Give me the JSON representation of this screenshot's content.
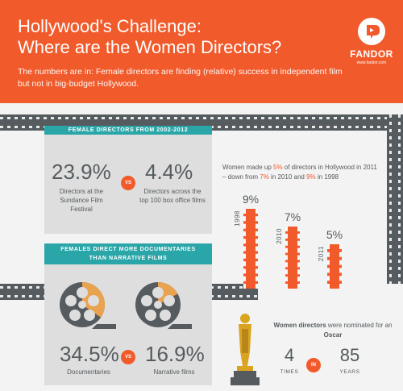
{
  "header": {
    "title_line1": "Hollywood's Challenge:",
    "title_line2": "Where are the Women Directors?",
    "subtitle": "The numbers are in: Female directors are finding (relative) success in independent film but not in big-budget Hollywood.",
    "logo_name": "FANDOR",
    "logo_url": "www.fandor.com"
  },
  "section1": {
    "banner": "FEMALE DIRECTORS FROM 2002-2012",
    "left_value": "23.9%",
    "left_label": "Directors at the Sundance Film Festival",
    "vs": "VS",
    "right_value": "4.4%",
    "right_label": "Directors across the top 100 box office films"
  },
  "chart_data": {
    "type": "bar",
    "caption_parts": [
      "Women made up ",
      "5%",
      " of directors in Hollywood in 2011 – down from ",
      "7%",
      " in 2010 and ",
      "9%",
      " in 1998"
    ],
    "categories": [
      "1998",
      "2010",
      "2011"
    ],
    "values": [
      9,
      7,
      5
    ],
    "value_labels": [
      "9%",
      "7%",
      "5%"
    ]
  },
  "section2": {
    "banner_line1": "FEMALES DIRECT MORE DOCUMENTARIES",
    "banner_line2": "THAN NARRATIVE FILMS",
    "left_value": "34.5%",
    "left_label": "Documentaries",
    "vs": "VS",
    "right_value": "16.9%",
    "right_label": "Narrative films",
    "left_fraction": 0.345,
    "right_fraction": 0.169
  },
  "oscar": {
    "note_part1": "Women directors",
    "note_part2": " were nominated for an ",
    "note_part3": "Oscar",
    "times_value": "4",
    "times_label": "TIMES",
    "in_label": "IN",
    "years_value": "85",
    "years_label": "YEARS"
  },
  "colors": {
    "accent": "#f15a2b",
    "teal": "#2aa6a8",
    "film": "#555b5e",
    "text": "#555b5e",
    "gold": "#d9a520"
  }
}
